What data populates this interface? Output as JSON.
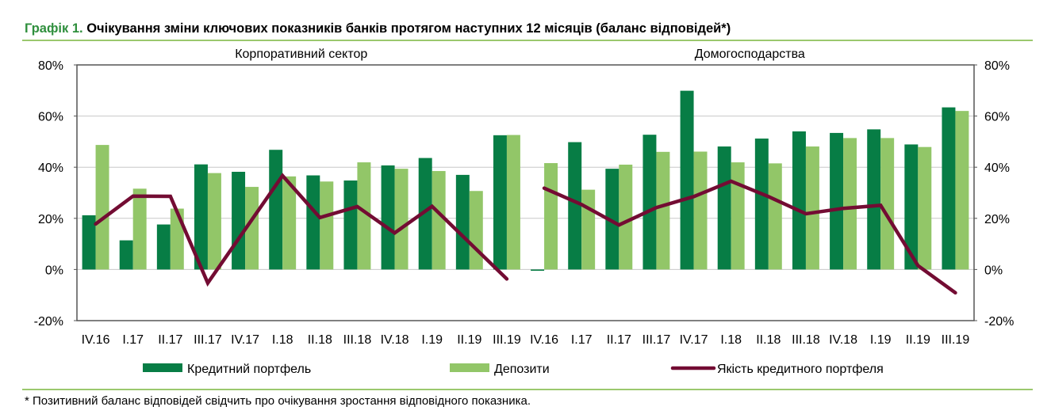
{
  "title": {
    "number": "Графік 1.",
    "text": "Очікування зміни ключових показників банків протягом наступних 12 місяців (баланс відповідей*)"
  },
  "footnote": "* Позитивний баланс відповідей свідчить про очікування зростання відповідного показника.",
  "colors": {
    "credit_portfolio": "#077d45",
    "deposits": "#92c668",
    "credit_quality": "#730c33",
    "accent_rule": "#9bc86e"
  },
  "chart_data": {
    "type": "bar",
    "groups": [
      {
        "label": "Корпоративний сектор",
        "categories": [
          "IV.16",
          "I.17",
          "II.17",
          "III.17",
          "IV.17",
          "I.18",
          "II.18",
          "III.18",
          "IV.18",
          "I.19",
          "II.19",
          "III.19"
        ]
      },
      {
        "label": "Домогосподарства",
        "categories": [
          "IV.16",
          "I.17",
          "II.17",
          "III.17",
          "IV.17",
          "I.18",
          "II.18",
          "III.18",
          "IV.18",
          "I.19",
          "II.19",
          "III.19"
        ]
      }
    ],
    "categories": [
      "IV.16",
      "I.17",
      "II.17",
      "III.17",
      "IV.17",
      "I.18",
      "II.18",
      "III.18",
      "IV.18",
      "I.19",
      "II.19",
      "III.19",
      "IV.16",
      "I.17",
      "II.17",
      "III.17",
      "IV.17",
      "I.18",
      "II.18",
      "III.18",
      "IV.18",
      "I.19",
      "II.19",
      "III.19"
    ],
    "series": [
      {
        "name": "Кредитний портфель",
        "type": "bar",
        "values": [
          21.2,
          11.4,
          17.6,
          41.1,
          38.2,
          46.8,
          36.8,
          34.8,
          40.7,
          43.6,
          37.0,
          52.5,
          -0.5,
          49.8,
          39.4,
          52.7,
          69.9,
          48.1,
          51.2,
          54.0,
          53.4,
          54.8,
          48.9,
          63.4
        ]
      },
      {
        "name": "Депозити",
        "type": "bar",
        "values": [
          48.7,
          31.6,
          23.8,
          37.7,
          32.3,
          36.4,
          34.4,
          41.9,
          39.4,
          38.5,
          30.7,
          52.6,
          41.6,
          31.2,
          41.0,
          46.0,
          46.1,
          41.9,
          41.5,
          48.1,
          51.4,
          51.4,
          47.9,
          62.0
        ]
      },
      {
        "name": "Якість кредитного портфеля",
        "type": "line",
        "values": [
          17.8,
          28.7,
          28.6,
          -5.3,
          15.7,
          36.7,
          20.3,
          24.6,
          14.3,
          24.7,
          10.5,
          -3.7,
          31.8,
          25.4,
          17.4,
          24.2,
          28.5,
          34.5,
          28.5,
          21.8,
          23.9,
          25.1,
          1.5,
          -9.1
        ]
      }
    ],
    "ylim": [
      -20,
      80
    ],
    "yticks": [
      "-20%",
      "0%",
      "20%",
      "40%",
      "60%",
      "80%"
    ],
    "ytick_values": [
      -20,
      0,
      20,
      40,
      60,
      80
    ],
    "grid": true,
    "secondary_axis": true,
    "legend_position": "bottom"
  }
}
